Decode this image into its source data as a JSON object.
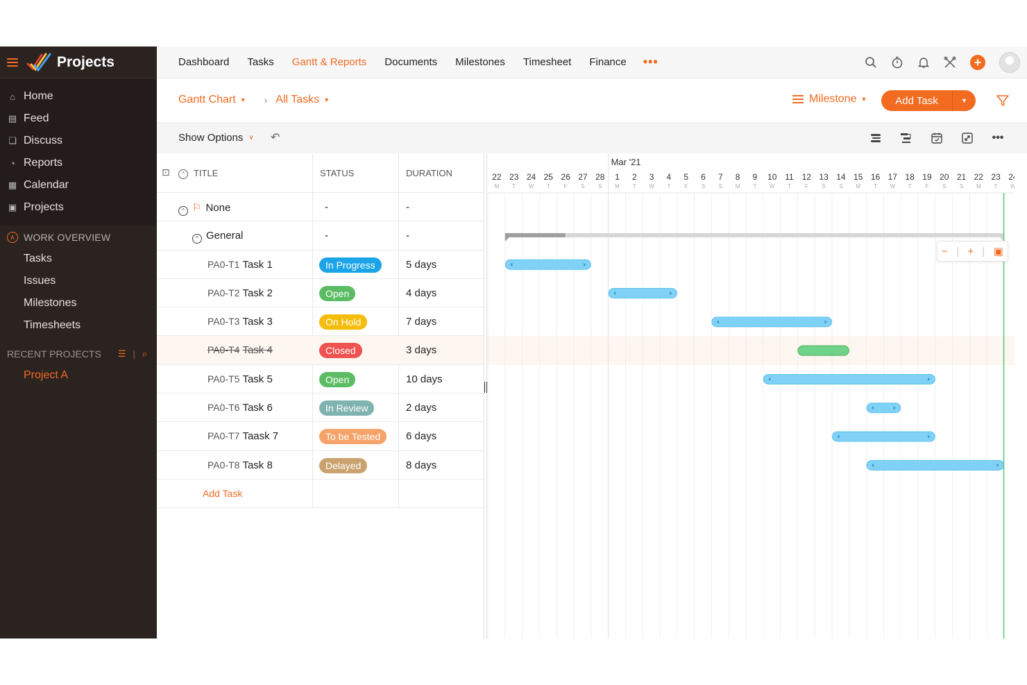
{
  "app": {
    "name": "Projects"
  },
  "sidebar": {
    "main_items": [
      {
        "label": "Home",
        "icon": "home-icon"
      },
      {
        "label": "Feed",
        "icon": "feed-icon"
      },
      {
        "label": "Discuss",
        "icon": "discuss-icon"
      },
      {
        "label": "Reports",
        "icon": "reports-icon"
      },
      {
        "label": "Calendar",
        "icon": "calendar-icon"
      },
      {
        "label": "Projects",
        "icon": "projects-icon"
      }
    ],
    "work_overview": {
      "title": "WORK OVERVIEW",
      "items": [
        "Tasks",
        "Issues",
        "Milestones",
        "Timesheets"
      ]
    },
    "recent_projects": {
      "title": "RECENT PROJECTS",
      "items": [
        "Project A"
      ]
    }
  },
  "topnav": {
    "tabs": [
      "Dashboard",
      "Tasks",
      "Gantt & Reports",
      "Documents",
      "Milestones",
      "Timesheet",
      "Finance"
    ],
    "active_tab": "Gantt & Reports",
    "more": "•••"
  },
  "toolbar": {
    "view": "Gantt Chart",
    "filter": "All Tasks",
    "milestone": "Milestone",
    "add_task": "Add Task"
  },
  "options": {
    "show_options": "Show Options"
  },
  "grid": {
    "columns": {
      "title": "TITLE",
      "status": "STATUS",
      "duration": "DURATION"
    },
    "milestone_row": {
      "title": "None",
      "status": "-",
      "duration": "-"
    },
    "tasklist_row": {
      "title": "General",
      "status": "-",
      "duration": "-"
    },
    "tasks": [
      {
        "key": "PA0-T1",
        "name": "Task 1",
        "status": "In Progress",
        "color": "#1ba4e8",
        "duration": "5 days",
        "closed": false
      },
      {
        "key": "PA0-T2",
        "name": "Task 2",
        "status": "Open",
        "color": "#5cbc64",
        "duration": "4 days",
        "closed": false
      },
      {
        "key": "PA0-T3",
        "name": "Task 3",
        "status": "On Hold",
        "color": "#f5bd0a",
        "duration": "7 days",
        "closed": false
      },
      {
        "key": "PA0-T4",
        "name": "Task 4",
        "status": "Closed",
        "color": "#ef5350",
        "duration": "3 days",
        "closed": true
      },
      {
        "key": "PA0-T5",
        "name": "Task 5",
        "status": "Open",
        "color": "#5cbc64",
        "duration": "10 days",
        "closed": false
      },
      {
        "key": "PA0-T6",
        "name": "Task 6",
        "status": "In Review",
        "color": "#7fb3b0",
        "duration": "2 days",
        "closed": false
      },
      {
        "key": "PA0-T7",
        "name": "Taask 7",
        "status": "To be Tested",
        "color": "#f5a36a",
        "duration": "6 days",
        "closed": false
      },
      {
        "key": "PA0-T8",
        "name": "Task 8",
        "status": "Delayed",
        "color": "#c9a26e",
        "duration": "8 days",
        "closed": false
      }
    ],
    "add_task_link": "Add Task"
  },
  "gantt": {
    "month_label": "Mar '21",
    "days": [
      "22",
      "23",
      "24",
      "25",
      "26",
      "27",
      "28",
      "1",
      "2",
      "3",
      "4",
      "5",
      "6",
      "7",
      "8",
      "9",
      "10",
      "11",
      "12",
      "13",
      "14",
      "15",
      "16",
      "17",
      "18",
      "19",
      "20",
      "21",
      "22",
      "23",
      "24"
    ],
    "weekdays": [
      "M",
      "T",
      "W",
      "T",
      "F",
      "S",
      "S",
      "M",
      "T",
      "W",
      "T",
      "F",
      "S",
      "S",
      "M",
      "T",
      "W",
      "T",
      "F",
      "S",
      "S",
      "M",
      "T",
      "W",
      "T",
      "F",
      "S",
      "S",
      "M",
      "T",
      "W"
    ],
    "month_start_index": 7,
    "today_index": 30,
    "tasklist_span": {
      "start": 1,
      "end": 30,
      "progress_end": 4.5
    },
    "bars": [
      {
        "start": 1,
        "days": 5,
        "color": "#7fd1f5",
        "closed": false
      },
      {
        "start": 7,
        "days": 4,
        "color": "#7fd1f5",
        "closed": false
      },
      {
        "start": 13,
        "days": 7,
        "color": "#7fd1f5",
        "closed": false
      },
      {
        "start": 18,
        "days": 3,
        "color": "#6fd38a",
        "closed": true
      },
      {
        "start": 16,
        "days": 10,
        "color": "#7fd1f5",
        "closed": false
      },
      {
        "start": 22,
        "days": 2,
        "color": "#7fd1f5",
        "closed": false
      },
      {
        "start": 20,
        "days": 6,
        "color": "#7fd1f5",
        "closed": false
      },
      {
        "start": 22,
        "days": 8,
        "color": "#7fd1f5",
        "closed": false
      }
    ]
  }
}
